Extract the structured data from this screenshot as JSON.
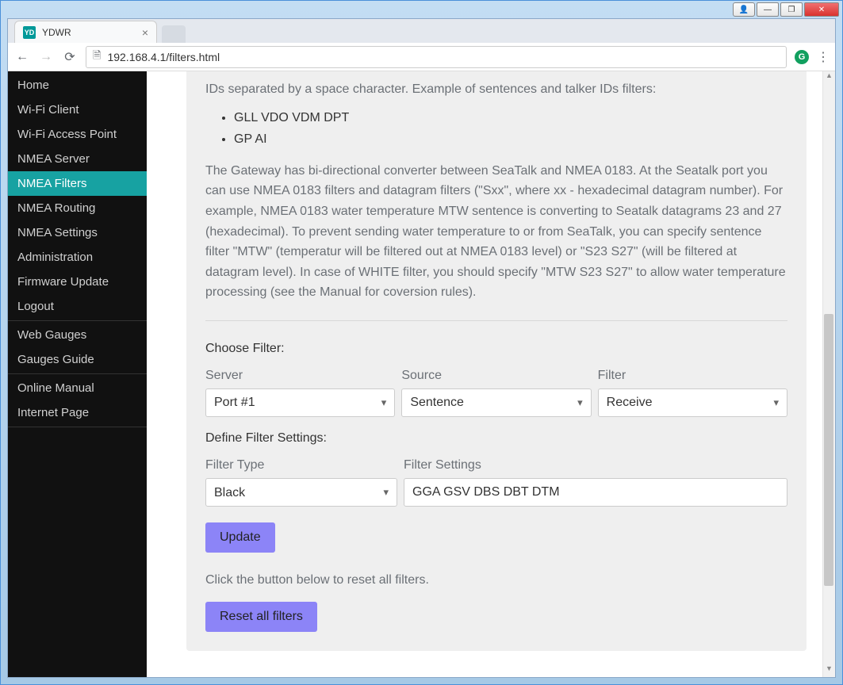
{
  "os": {
    "user_btn": "👤",
    "min_btn": "—",
    "max_btn": "❐",
    "close_btn": "✕"
  },
  "browser": {
    "tab_title": "YDWR",
    "favicon_text": "YD",
    "back": "←",
    "forward": "→",
    "reload": "⟳",
    "url": "192.168.4.1/filters.html",
    "page_icon": "🗎",
    "ext_badge": "G",
    "menu": "⋮"
  },
  "sidebar": {
    "groups": [
      {
        "items": [
          {
            "label": "Home",
            "name": "sidebar-item-home"
          },
          {
            "label": "Wi-Fi Client",
            "name": "sidebar-item-wifi-client"
          },
          {
            "label": "Wi-Fi Access Point",
            "name": "sidebar-item-wifi-ap"
          },
          {
            "label": "NMEA Server",
            "name": "sidebar-item-nmea-server"
          },
          {
            "label": "NMEA Filters",
            "name": "sidebar-item-nmea-filters",
            "active": true
          },
          {
            "label": "NMEA Routing",
            "name": "sidebar-item-nmea-routing"
          },
          {
            "label": "NMEA Settings",
            "name": "sidebar-item-nmea-settings"
          },
          {
            "label": "Administration",
            "name": "sidebar-item-administration"
          },
          {
            "label": "Firmware Update",
            "name": "sidebar-item-firmware-update"
          },
          {
            "label": "Logout",
            "name": "sidebar-item-logout"
          }
        ]
      },
      {
        "items": [
          {
            "label": "Web Gauges",
            "name": "sidebar-item-web-gauges"
          },
          {
            "label": "Gauges Guide",
            "name": "sidebar-item-gauges-guide"
          }
        ]
      },
      {
        "items": [
          {
            "label": "Online Manual",
            "name": "sidebar-item-online-manual"
          },
          {
            "label": "Internet Page",
            "name": "sidebar-item-internet-page"
          }
        ]
      }
    ]
  },
  "content": {
    "intro_line": "IDs separated by a space character. Example of sentences and talker IDs filters:",
    "example_items": [
      "GLL VDO VDM DPT",
      "GP AI"
    ],
    "paragraph": "The Gateway has bi-directional converter between SeaTalk and NMEA 0183. At the Seatalk port you can use NMEA 0183 filters and datagram filters (\"Sxx\", where xx - hexadecimal datagram number). For example, NMEA 0183 water temperature MTW sentence is converting to Seatalk datagrams 23 and 27 (hexadecimal). To prevent sending water temperature to or from SeaTalk, you can specify sentence filter \"MTW\" (temperatur will be filtered out at NMEA 0183 level) or \"S23 S27\" (will be filtered at datagram level). In case of WHITE filter, you should specify \"MTW S23 S27\" to allow water temperature processing (see the Manual for coversion rules).",
    "choose_filter_label": "Choose Filter:",
    "server_label": "Server",
    "source_label": "Source",
    "filter_label": "Filter",
    "server_value": "Port #1",
    "source_value": "Sentence",
    "filter_value": "Receive",
    "define_label": "Define Filter Settings:",
    "filter_type_label": "Filter Type",
    "filter_settings_label": "Filter Settings",
    "filter_type_value": "Black",
    "filter_settings_value": "GGA GSV DBS DBT DTM",
    "update_btn": "Update",
    "reset_hint": "Click the button below to reset all filters.",
    "reset_btn": "Reset all filters"
  },
  "colors": {
    "sidebar_bg": "#111111",
    "sidebar_active": "#17a2a2",
    "card_bg": "#efefef",
    "btn_bg": "#8c84f7",
    "text_muted": "#6b7076"
  }
}
